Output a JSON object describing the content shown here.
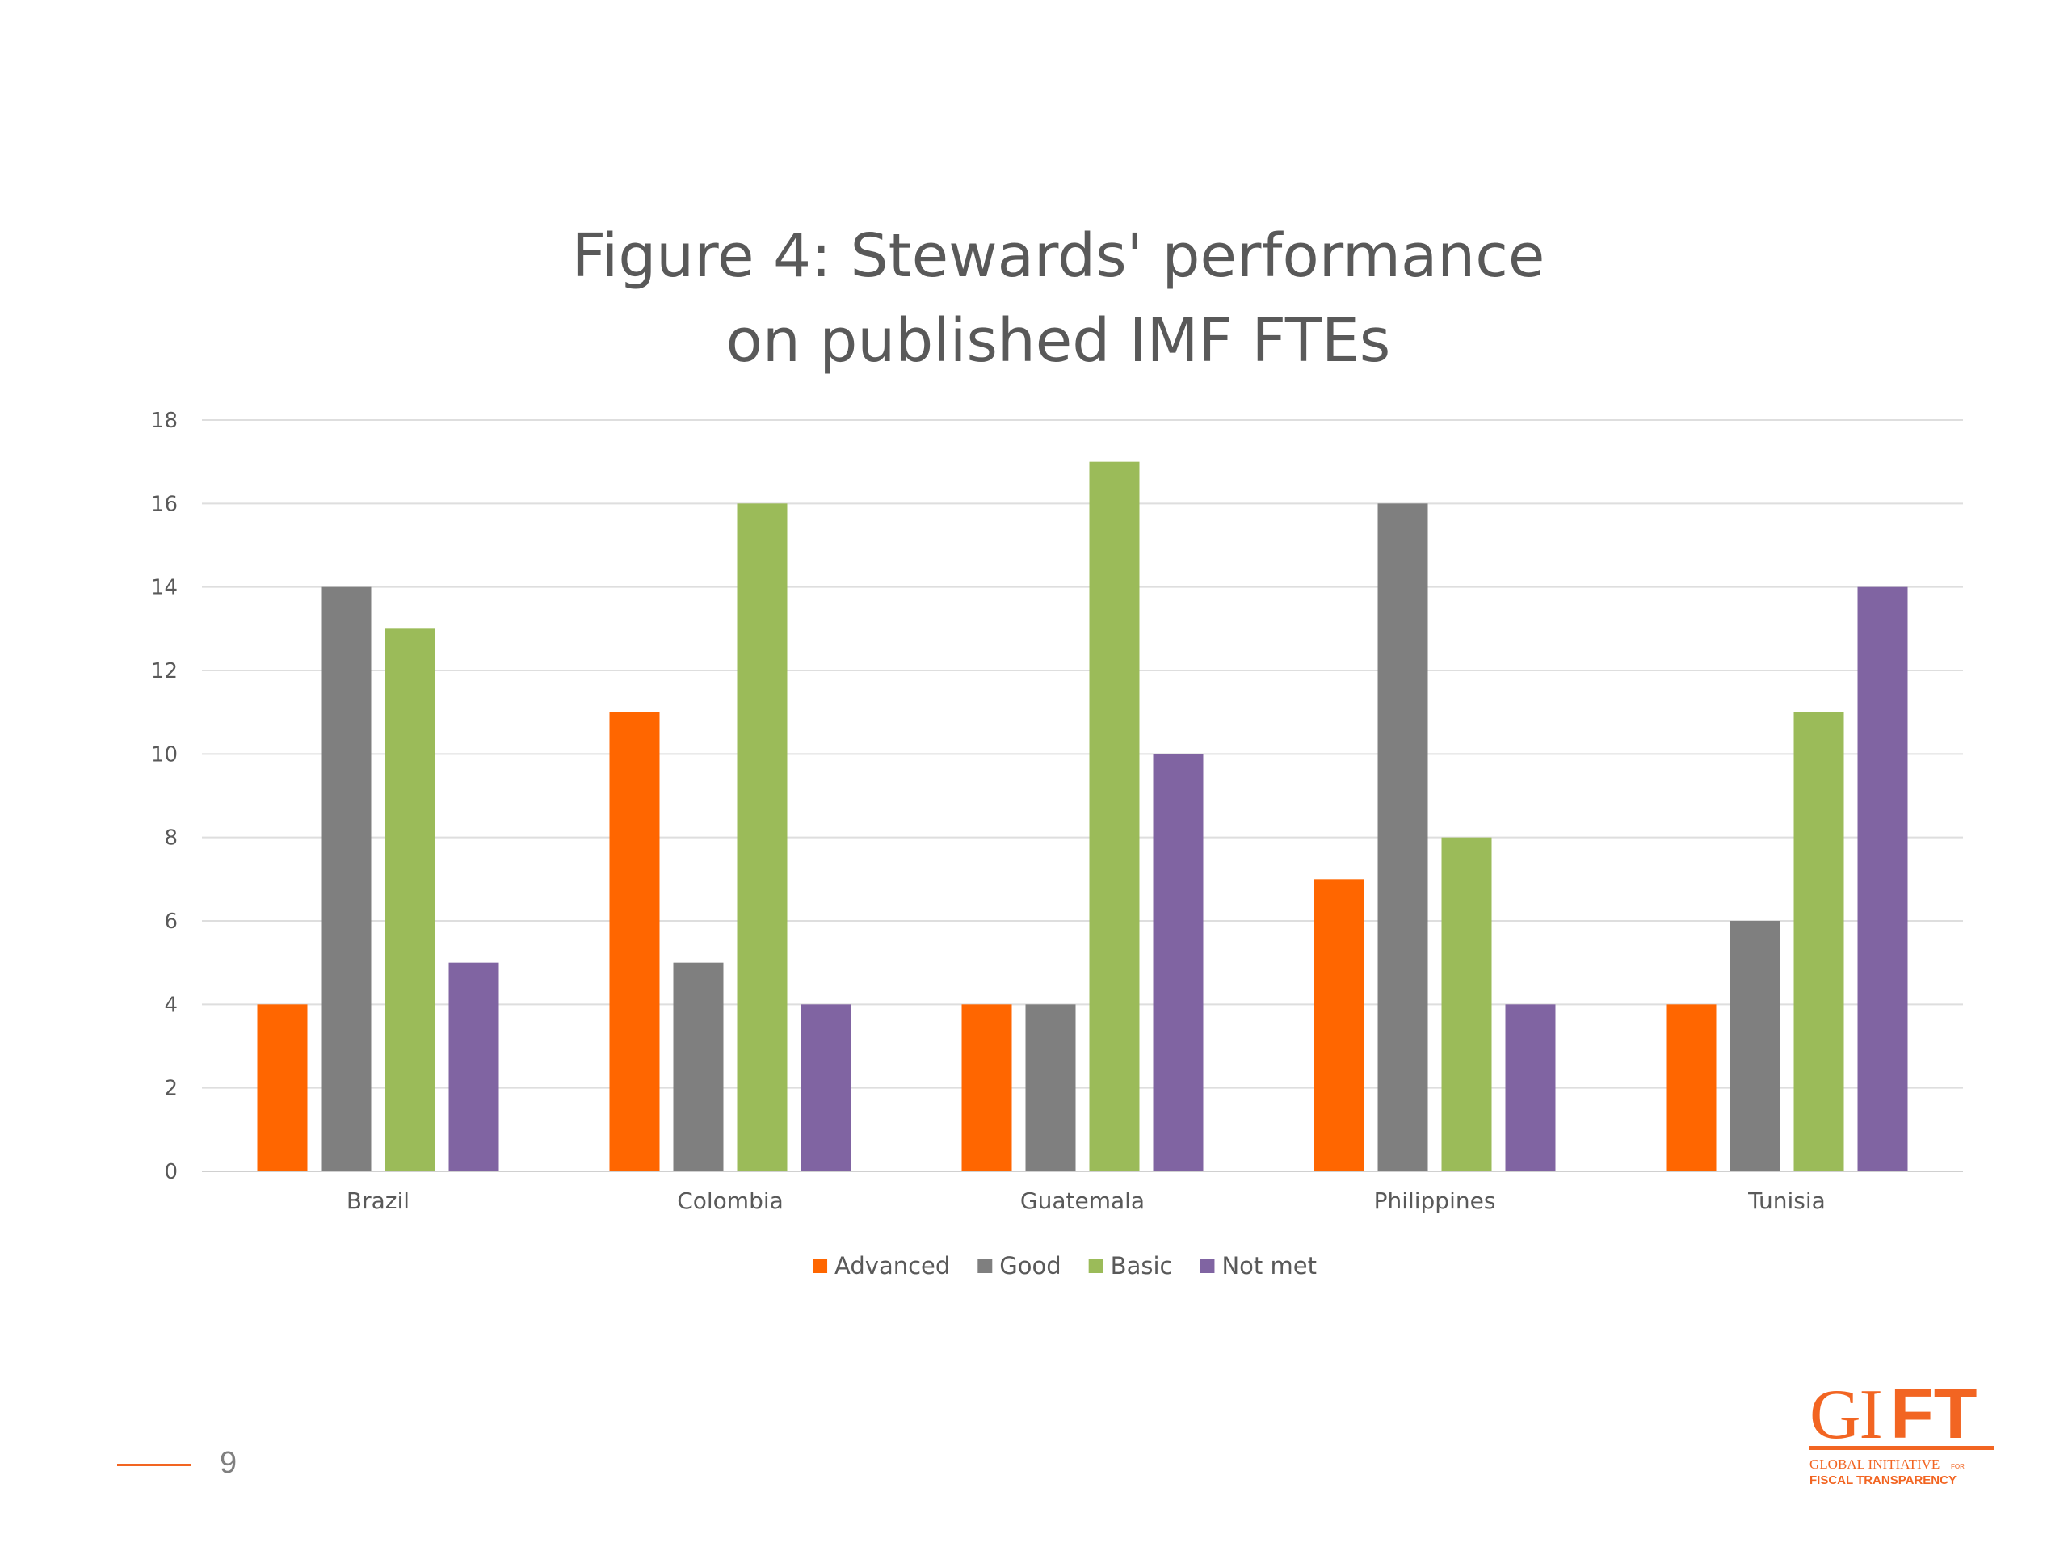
{
  "page": {
    "number": "9"
  },
  "logo": {
    "wordmark": "GIFT",
    "tagline_1": "GLOBAL INITIATIVE FOR",
    "tagline_2": "FISCAL TRANSPARENCY",
    "color": "#f26522"
  },
  "chart_data": {
    "type": "bar",
    "title": "Figure 4: Stewards' performance on published IMF FTEs",
    "title_lines": [
      "Figure 4: Stewards' performance",
      "on published IMF FTEs"
    ],
    "xlabel": "",
    "ylabel": "",
    "categories": [
      "Brazil",
      "Colombia",
      "Guatemala",
      "Philippines",
      "Tunisia"
    ],
    "series": [
      {
        "name": "Advanced",
        "color": "#ff6600",
        "values": [
          4,
          11,
          4,
          7,
          4
        ]
      },
      {
        "name": "Good",
        "color": "#7f7f7f",
        "values": [
          14,
          5,
          4,
          16,
          6
        ]
      },
      {
        "name": "Basic",
        "color": "#9bbb59",
        "values": [
          13,
          16,
          17,
          8,
          11
        ]
      },
      {
        "name": "Not met",
        "color": "#8064a2",
        "values": [
          5,
          4,
          10,
          4,
          14
        ]
      }
    ],
    "ylim": [
      0,
      18
    ],
    "yticks": [
      0,
      2,
      4,
      6,
      8,
      10,
      12,
      14,
      16,
      18
    ],
    "grid": true,
    "legend": "bottom-center"
  }
}
